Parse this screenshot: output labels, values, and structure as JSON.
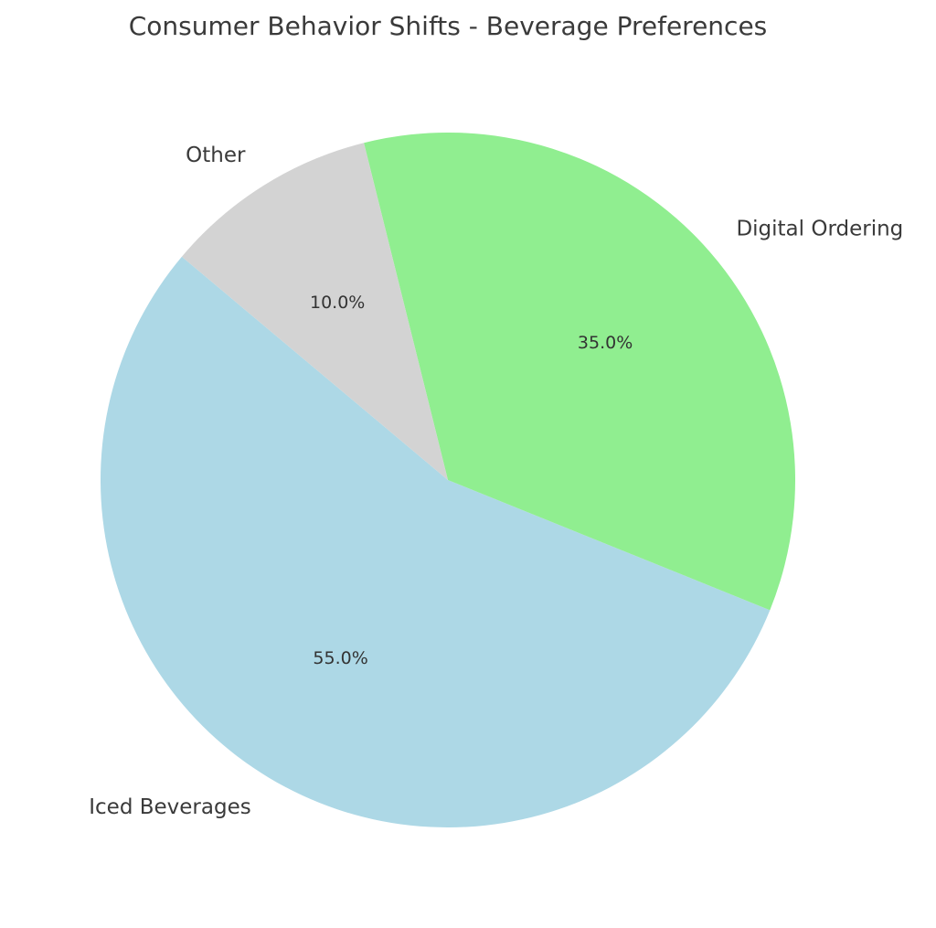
{
  "chart_data": {
    "type": "pie",
    "title": "Consumer Behavior Shifts - Beverage Preferences",
    "categories": [
      "Iced Beverages",
      "Digital Ordering",
      "Other"
    ],
    "values": [
      55,
      35,
      10
    ],
    "value_labels": [
      "55.0%",
      "35.0%",
      "10.0%"
    ],
    "colors": [
      "#add8e6",
      "#90ee90",
      "#d3d3d3"
    ],
    "start_angle_deg": 140,
    "direction": "counterclockwise",
    "legend": "none"
  }
}
